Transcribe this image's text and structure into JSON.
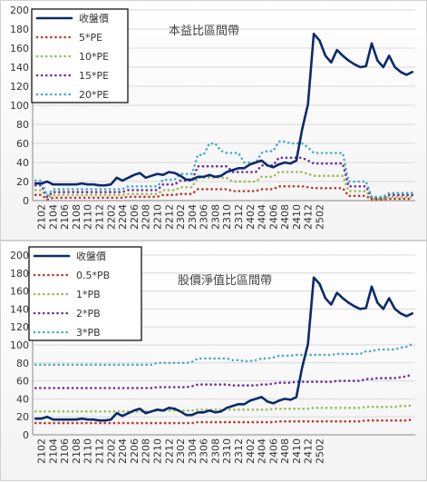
{
  "chart_data": [
    {
      "type": "line",
      "title": "本益比區間帶",
      "xlabel": "",
      "ylabel": "",
      "ylim": [
        0,
        200
      ],
      "yticks": [
        0,
        20,
        40,
        60,
        80,
        100,
        120,
        140,
        160,
        180,
        200
      ],
      "x_tick_labels": [
        "2102",
        "2104",
        "2106",
        "2108",
        "2110",
        "2112",
        "2202",
        "2204",
        "2206",
        "2208",
        "2210",
        "2212",
        "2302",
        "2304",
        "2306",
        "2308",
        "2310",
        "2312",
        "2402",
        "2404",
        "2406",
        "2408",
        "2410",
        "2412",
        "2502"
      ],
      "x_tick_start_index": 1,
      "x_tick_every": 2,
      "legend_position": "top-left",
      "series": [
        {
          "name": "收盤價",
          "color": "#0b2a6b",
          "style": "solid",
          "values": [
            18,
            18,
            20,
            17,
            17,
            17,
            17,
            17,
            18,
            17,
            17,
            16,
            16,
            17,
            24,
            21,
            24,
            27,
            29,
            24,
            26,
            28,
            27,
            30,
            29,
            26,
            22,
            22,
            25,
            25,
            27,
            25,
            26,
            30,
            32,
            34,
            34,
            38,
            40,
            42,
            37,
            35,
            38,
            40,
            39,
            42,
            75,
            101,
            175,
            168,
            152,
            145,
            158,
            152,
            147,
            143,
            140,
            141,
            165,
            147,
            140,
            152,
            140,
            135,
            132,
            135
          ]
        },
        {
          "name": "5*PE",
          "color": "#c0392b",
          "style": "dotted",
          "values": [
            6,
            6,
            1,
            3,
            3,
            3,
            3,
            3,
            3,
            3,
            3,
            3,
            3,
            3,
            3,
            3,
            4,
            4,
            4,
            4,
            4,
            4,
            6,
            6,
            6,
            7,
            7,
            7,
            12,
            12,
            12,
            12,
            12,
            12,
            10,
            10,
            10,
            10,
            10,
            12,
            12,
            12,
            15,
            15,
            15,
            15,
            15,
            14,
            13,
            13,
            13,
            13,
            13,
            13,
            5,
            5,
            5,
            5,
            1,
            1,
            1,
            2,
            2,
            2,
            2,
            2
          ]
        },
        {
          "name": "10*PE",
          "color": "#9bbb59",
          "style": "dotted",
          "values": [
            11,
            11,
            3,
            6,
            6,
            6,
            6,
            6,
            6,
            6,
            6,
            6,
            6,
            6,
            6,
            6,
            7,
            7,
            7,
            7,
            7,
            7,
            11,
            11,
            11,
            14,
            14,
            14,
            24,
            24,
            24,
            24,
            24,
            24,
            20,
            20,
            20,
            20,
            20,
            25,
            25,
            25,
            30,
            30,
            30,
            30,
            30,
            28,
            26,
            26,
            26,
            26,
            26,
            26,
            10,
            10,
            10,
            10,
            2,
            2,
            2,
            4,
            4,
            4,
            4,
            4
          ]
        },
        {
          "name": "15*PE",
          "color": "#7030a0",
          "style": "dotted",
          "values": [
            16,
            16,
            4,
            9,
            9,
            9,
            9,
            9,
            9,
            9,
            9,
            9,
            9,
            9,
            9,
            9,
            11,
            11,
            11,
            11,
            11,
            11,
            17,
            17,
            17,
            21,
            21,
            21,
            36,
            36,
            36,
            36,
            36,
            36,
            30,
            30,
            30,
            30,
            30,
            37,
            37,
            37,
            45,
            45,
            45,
            45,
            45,
            42,
            39,
            39,
            39,
            39,
            39,
            39,
            15,
            15,
            15,
            15,
            3,
            3,
            3,
            6,
            6,
            6,
            6,
            6
          ]
        },
        {
          "name": "20*PE",
          "color": "#4bacc6",
          "style": "dotted",
          "values": [
            21,
            21,
            5,
            12,
            12,
            12,
            12,
            12,
            12,
            12,
            12,
            12,
            12,
            12,
            12,
            12,
            15,
            15,
            15,
            15,
            15,
            15,
            22,
            22,
            22,
            28,
            28,
            28,
            48,
            48,
            60,
            60,
            52,
            50,
            50,
            50,
            40,
            40,
            40,
            50,
            52,
            52,
            62,
            62,
            60,
            60,
            60,
            56,
            50,
            50,
            50,
            50,
            50,
            50,
            20,
            20,
            20,
            20,
            4,
            4,
            4,
            8,
            8,
            8,
            8,
            8
          ]
        }
      ]
    },
    {
      "type": "line",
      "title": "股價淨值比區間帶",
      "xlabel": "",
      "ylabel": "",
      "ylim": [
        0,
        200
      ],
      "yticks": [
        0,
        20,
        40,
        60,
        80,
        100,
        120,
        140,
        160,
        180,
        200
      ],
      "x_tick_labels": [
        "2102",
        "2104",
        "2106",
        "2108",
        "2110",
        "2112",
        "2202",
        "2204",
        "2206",
        "2208",
        "2210",
        "2212",
        "2302",
        "2304",
        "2306",
        "2308",
        "2310",
        "2312",
        "2402",
        "2404",
        "2406",
        "2408",
        "2410",
        "2412",
        "2502"
      ],
      "x_tick_start_index": 1,
      "x_tick_every": 2,
      "legend_position": "top-left",
      "series": [
        {
          "name": "收盤價",
          "color": "#0b2a6b",
          "style": "solid",
          "values": [
            18,
            18,
            20,
            17,
            17,
            17,
            17,
            17,
            18,
            17,
            17,
            16,
            16,
            17,
            24,
            21,
            24,
            27,
            29,
            24,
            26,
            28,
            27,
            30,
            29,
            26,
            22,
            22,
            25,
            25,
            27,
            25,
            26,
            30,
            32,
            34,
            34,
            38,
            40,
            42,
            37,
            35,
            38,
            40,
            39,
            42,
            75,
            101,
            175,
            168,
            152,
            145,
            158,
            152,
            147,
            143,
            140,
            141,
            165,
            147,
            140,
            152,
            140,
            135,
            132,
            135
          ]
        },
        {
          "name": "0.5*PB",
          "color": "#c0392b",
          "style": "dotted",
          "values": [
            13,
            13,
            13,
            13,
            13,
            13,
            13,
            13,
            13,
            13,
            13,
            13,
            13,
            13,
            13,
            13,
            13,
            13,
            13,
            13,
            13,
            13,
            13,
            13,
            13,
            13,
            13,
            13,
            14,
            14,
            14,
            14,
            14,
            14,
            14,
            14,
            14,
            14,
            14,
            14,
            14,
            14,
            15,
            15,
            15,
            15,
            15,
            15,
            15,
            15,
            15,
            15,
            15,
            15,
            15,
            15,
            15,
            16,
            16,
            16,
            16,
            16,
            16,
            16,
            16,
            17
          ]
        },
        {
          "name": "1*PB",
          "color": "#9bbb59",
          "style": "dotted",
          "values": [
            26,
            26,
            26,
            26,
            26,
            26,
            26,
            26,
            26,
            26,
            26,
            26,
            26,
            26,
            26,
            26,
            26,
            26,
            26,
            26,
            26,
            27,
            27,
            27,
            27,
            27,
            27,
            27,
            28,
            28,
            28,
            28,
            28,
            28,
            28,
            28,
            28,
            28,
            28,
            28,
            28,
            29,
            29,
            29,
            29,
            29,
            29,
            29,
            30,
            30,
            30,
            30,
            30,
            30,
            30,
            30,
            30,
            31,
            31,
            31,
            31,
            31,
            31,
            32,
            32,
            33
          ]
        },
        {
          "name": "2*PB",
          "color": "#7030a0",
          "style": "dotted",
          "values": [
            52,
            52,
            52,
            52,
            52,
            52,
            52,
            52,
            52,
            52,
            52,
            52,
            52,
            52,
            52,
            52,
            52,
            52,
            52,
            52,
            52,
            53,
            53,
            53,
            53,
            53,
            53,
            54,
            56,
            56,
            56,
            56,
            56,
            56,
            55,
            55,
            55,
            55,
            55,
            56,
            56,
            57,
            58,
            58,
            58,
            59,
            59,
            59,
            59,
            59,
            59,
            59,
            60,
            60,
            60,
            60,
            60,
            62,
            62,
            63,
            63,
            63,
            63,
            64,
            65,
            67
          ]
        },
        {
          "name": "3*PB",
          "color": "#4bacc6",
          "style": "dotted",
          "values": [
            78,
            78,
            78,
            78,
            78,
            78,
            78,
            78,
            78,
            78,
            78,
            78,
            78,
            78,
            78,
            78,
            78,
            78,
            78,
            78,
            78,
            80,
            80,
            80,
            80,
            80,
            80,
            81,
            85,
            85,
            85,
            85,
            85,
            85,
            83,
            83,
            82,
            82,
            83,
            85,
            85,
            86,
            88,
            88,
            88,
            89,
            89,
            89,
            89,
            89,
            89,
            89,
            90,
            90,
            90,
            90,
            90,
            93,
            93,
            95,
            95,
            95,
            95,
            97,
            98,
            101
          ]
        }
      ]
    }
  ]
}
